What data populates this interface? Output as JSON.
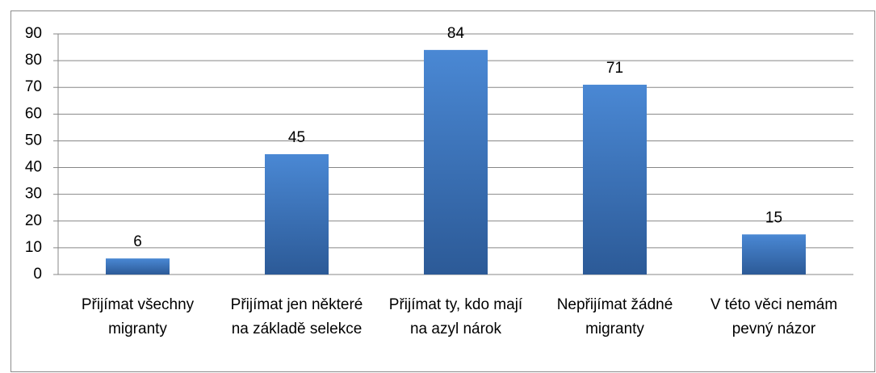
{
  "chart_data": {
    "type": "bar",
    "categories": [
      "Přijímat  všechny migranty",
      "Přijímat jen některé na základě selekce",
      "Přijímat ty, kdo mají na azyl nárok",
      "Nepřijímat žádné migranty",
      "V této věci nemám pevný názor"
    ],
    "values": [
      6,
      45,
      84,
      71,
      15
    ],
    "color": "#3a73bd",
    "ylim": [
      0,
      90
    ],
    "yticks": [
      0,
      10,
      20,
      30,
      40,
      50,
      60,
      70,
      80,
      90
    ],
    "grid": true,
    "data_labels": true
  }
}
